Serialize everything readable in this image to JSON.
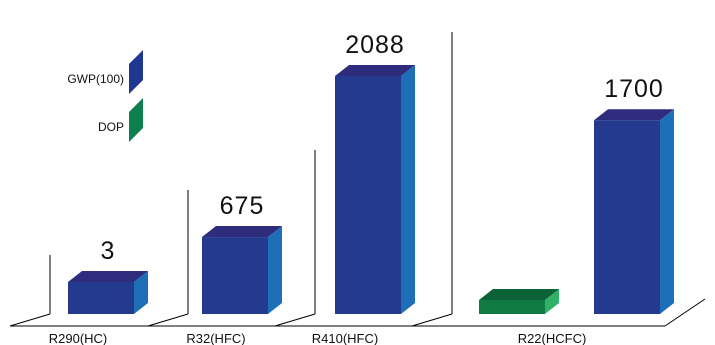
{
  "legend": {
    "items": [
      {
        "label": "GWP(100)",
        "color": "#223a8f",
        "side_color": "#1f3790"
      },
      {
        "label": "DOP",
        "color": "#0d7a48",
        "side_color": "#0e8050"
      }
    ]
  },
  "colors": {
    "gwp_front": "#233a8f",
    "gwp_top": "#2f2c7e",
    "gwp_side": "#1d6fb8",
    "odp_front": "#0f7a44",
    "odp_top": "#0a6236",
    "odp_side": "#31b06a",
    "axis": "#000000"
  },
  "chart_data": {
    "type": "bar",
    "categories": [
      "R290(HC)",
      "R32(HFC)",
      "R410(HFC)",
      "R22(HCFC)"
    ],
    "series": [
      {
        "name": "GWP(100)",
        "values": [
          3,
          675,
          2088,
          1700
        ],
        "value_labels": [
          "3",
          "675",
          "2088",
          "1700"
        ]
      },
      {
        "name": "DOP",
        "values": [
          null,
          null,
          null,
          0.05
        ],
        "value_labels": [
          "",
          "",
          "",
          ""
        ]
      }
    ],
    "ylim": [
      0,
      2300
    ],
    "grid": false,
    "legend_position": "top-left"
  }
}
